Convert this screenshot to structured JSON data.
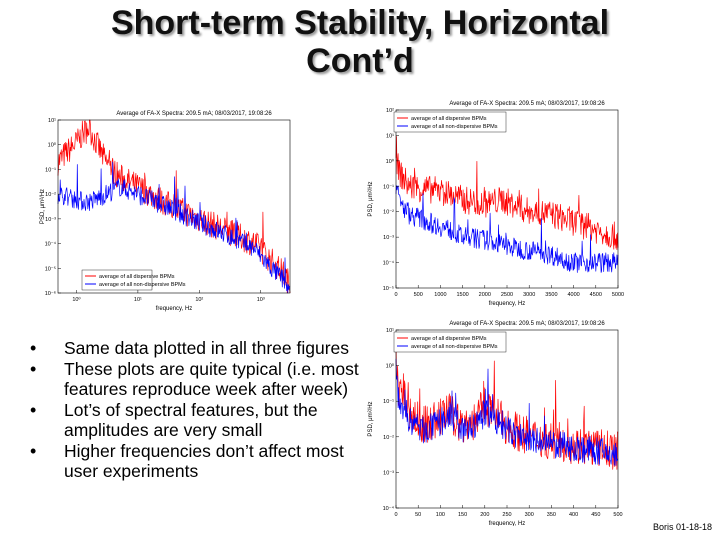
{
  "slide": {
    "title_line1": "Short-term Stability, Horizontal",
    "title_line2": "Cont’d",
    "bullets": [
      "Same data plotted in all three figures",
      "These plots are quite typical (i.e. most features reproduce week after week)",
      "Lot’s of spectral features, but the amplitudes are very small",
      "Higher frequencies don’t affect most user experiments"
    ],
    "footer": "Boris 01-18-18",
    "bullet_glyph": "•"
  },
  "colors": {
    "dispersive": "#ff0000",
    "nondispersive": "#0000ff"
  },
  "chart_data": [
    {
      "type": "line",
      "title": "Average of FA-X Spectra: 209.5 mA; 08/03/2017, 19:08:26",
      "xlabel": "frequency, Hz",
      "ylabel": "PSD, μm²/Hz",
      "xscale": "log",
      "yscale": "log",
      "xlim": [
        0.5,
        3000
      ],
      "ylim": [
        1e-06,
        10.0
      ],
      "xtick_labels": [
        "10⁰",
        "10¹",
        "10²",
        "10³"
      ],
      "ytick_labels": [
        "10¹",
        "10⁰",
        "10⁻¹",
        "10⁻²",
        "10⁻³",
        "10⁻⁴",
        "10⁻⁵",
        "10⁻⁶"
      ],
      "legend_position": "bottom-right",
      "series": [
        {
          "name": "average of all dispersive BPMs",
          "color": "#ff0000",
          "x": [
            0.5,
            0.7,
            1,
            1.3,
            1.6,
            2,
            3,
            5,
            10,
            30,
            100,
            300,
            800,
            1500,
            2500,
            3000
          ],
          "y": [
            0.2,
            0.5,
            1.2,
            3,
            5,
            1.5,
            0.2,
            0.05,
            0.02,
            0.004,
            0.001,
            0.0003,
            0.0001,
            2e-05,
            5e-06,
            2e-06
          ]
        },
        {
          "name": "average of all non-dispersive BPMs",
          "color": "#0000ff",
          "x": [
            0.5,
            0.7,
            1,
            1.3,
            1.6,
            2,
            3,
            5,
            10,
            30,
            100,
            300,
            800,
            1500,
            2500,
            3000
          ],
          "y": [
            0.01,
            0.008,
            0.006,
            0.005,
            0.005,
            0.006,
            0.01,
            0.02,
            0.01,
            0.003,
            0.0007,
            0.0002,
            6e-05,
            1e-05,
            3e-06,
            1e-06
          ]
        }
      ]
    },
    {
      "type": "line",
      "title": "Average of FA-X Spectra: 209.5 mA; 08/03/2017, 19:08:26",
      "xlabel": "frequency, Hz",
      "ylabel": "PSD, μm²/Hz",
      "xscale": "linear",
      "yscale": "log",
      "xlim": [
        0,
        5000
      ],
      "ylim": [
        1e-05,
        100.0
      ],
      "xtick_labels": [
        "0",
        "500",
        "1000",
        "1500",
        "2000",
        "2500",
        "3000",
        "3500",
        "4000",
        "4500",
        "5000"
      ],
      "ytick_labels": [
        "10²",
        "10¹",
        "10⁰",
        "10⁻¹",
        "10⁻²",
        "10⁻³",
        "10⁻⁴",
        "10⁻⁵"
      ],
      "legend_position": "top-left",
      "series": [
        {
          "name": "average of all dispersive BPMs",
          "color": "#ff0000",
          "x": [
            0,
            100,
            300,
            600,
            900,
            1200,
            1500,
            2000,
            2400,
            2600,
            3000,
            3500,
            4000,
            4500,
            5000
          ],
          "y": [
            1,
            0.3,
            0.1,
            0.08,
            0.07,
            0.05,
            0.03,
            0.02,
            0.03,
            0.02,
            0.01,
            0.008,
            0.004,
            0.002,
            0.001
          ]
        },
        {
          "name": "average of all non-dispersive BPMs",
          "color": "#0000ff",
          "x": [
            0,
            100,
            300,
            600,
            900,
            1200,
            1500,
            2000,
            2400,
            2600,
            3000,
            3500,
            4000,
            4500,
            5000
          ],
          "y": [
            0.1,
            0.02,
            0.008,
            0.005,
            0.003,
            0.002,
            0.001,
            0.0008,
            0.0005,
            0.0004,
            0.0003,
            0.0002,
            0.0001,
            0.0001,
            0.0001
          ]
        }
      ]
    },
    {
      "type": "line",
      "title": "Average of FA-X Spectra: 209.5 mA; 08/03/2017, 19:08:26",
      "xlabel": "frequency, Hz",
      "ylabel": "PSD, μm²/Hz",
      "xscale": "linear",
      "yscale": "log",
      "xlim": [
        0,
        500
      ],
      "ylim": [
        0.0001,
        10.0
      ],
      "xtick_labels": [
        "0",
        "50",
        "100",
        "150",
        "200",
        "250",
        "300",
        "350",
        "400",
        "450",
        "500"
      ],
      "ytick_labels": [
        "10¹",
        "10⁰",
        "10⁻¹",
        "10⁻²",
        "10⁻³",
        "10⁻⁴"
      ],
      "legend_position": "top-left",
      "series": [
        {
          "name": "average of all dispersive BPMs",
          "color": "#ff0000",
          "x": [
            0,
            2,
            5,
            10,
            30,
            60,
            90,
            120,
            150,
            180,
            200,
            250,
            300,
            350,
            400,
            450,
            500
          ],
          "y": [
            2,
            0.5,
            0.3,
            0.2,
            0.05,
            0.02,
            0.03,
            0.05,
            0.02,
            0.03,
            0.08,
            0.02,
            0.01,
            0.008,
            0.006,
            0.005,
            0.004
          ]
        },
        {
          "name": "average of all non-dispersive BPMs",
          "color": "#0000ff",
          "x": [
            0,
            2,
            5,
            10,
            30,
            60,
            90,
            120,
            150,
            180,
            200,
            250,
            300,
            350,
            400,
            450,
            500
          ],
          "y": [
            0.8,
            0.3,
            0.15,
            0.1,
            0.03,
            0.015,
            0.02,
            0.04,
            0.015,
            0.02,
            0.05,
            0.015,
            0.008,
            0.006,
            0.005,
            0.004,
            0.003
          ]
        }
      ]
    }
  ]
}
